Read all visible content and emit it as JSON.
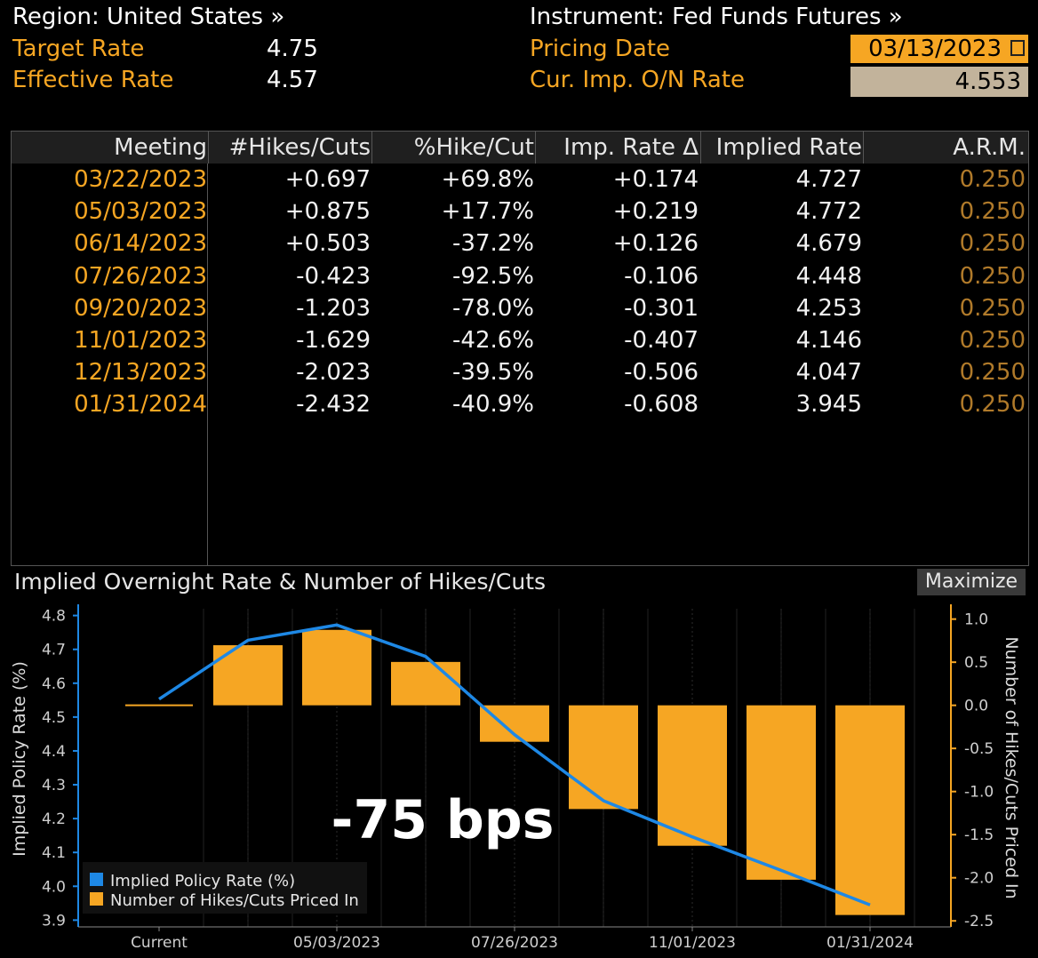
{
  "header": {
    "region": "Region: United States »",
    "instrument": "Instrument: Fed Funds Futures »",
    "target_rate_label": "Target Rate",
    "target_rate_value": "4.75",
    "effective_rate_label": "Effective Rate",
    "effective_rate_value": "4.57",
    "pricing_date_label": "Pricing Date",
    "pricing_date_value": "03/13/2023",
    "cur_imp_label": "Cur. Imp. O/N Rate",
    "cur_imp_value": "4.553"
  },
  "table": {
    "columns": [
      "Meeting",
      "#Hikes/Cuts",
      "%Hike/Cut",
      "Imp. Rate Δ",
      "Implied Rate",
      "A.R.M."
    ],
    "rows": [
      [
        "03/22/2023",
        "+0.697",
        "+69.8%",
        "+0.174",
        "4.727",
        "0.250"
      ],
      [
        "05/03/2023",
        "+0.875",
        "+17.7%",
        "+0.219",
        "4.772",
        "0.250"
      ],
      [
        "06/14/2023",
        "+0.503",
        "-37.2%",
        "+0.126",
        "4.679",
        "0.250"
      ],
      [
        "07/26/2023",
        "-0.423",
        "-92.5%",
        "-0.106",
        "4.448",
        "0.250"
      ],
      [
        "09/20/2023",
        "-1.203",
        "-78.0%",
        "-0.301",
        "4.253",
        "0.250"
      ],
      [
        "11/01/2023",
        "-1.629",
        "-42.6%",
        "-0.407",
        "4.146",
        "0.250"
      ],
      [
        "12/13/2023",
        "-2.023",
        "-39.5%",
        "-0.506",
        "4.047",
        "0.250"
      ],
      [
        "01/31/2024",
        "-2.432",
        "-40.9%",
        "-0.608",
        "3.945",
        "0.250"
      ]
    ]
  },
  "chart_title": "Implied Overnight Rate & Number of Hikes/Cuts",
  "maximize_label": "Maximize",
  "annotation": "-75 bps",
  "chart_data": {
    "type": "bar",
    "title": "Implied Overnight Rate & Number of Hikes/Cuts",
    "categories": [
      "Current",
      "03/22/2023",
      "05/03/2023",
      "06/14/2023",
      "07/26/2023",
      "09/20/2023",
      "11/01/2023",
      "12/13/2023",
      "01/31/2024"
    ],
    "x_tick_labels": [
      "Current",
      "05/03/2023",
      "07/26/2023",
      "11/01/2023",
      "01/31/2024"
    ],
    "series": [
      {
        "name": "Implied Policy Rate (%)",
        "type": "line",
        "axis": "left",
        "color": "#1e88e5",
        "values": [
          4.553,
          4.727,
          4.772,
          4.679,
          4.448,
          4.253,
          4.146,
          4.047,
          3.945
        ]
      },
      {
        "name": "Number of Hikes/Cuts Priced In",
        "type": "bar",
        "axis": "right",
        "color": "#f6a623",
        "values": [
          0.0,
          0.697,
          0.875,
          0.503,
          -0.423,
          -1.203,
          -1.629,
          -2.023,
          -2.432
        ]
      }
    ],
    "ylabel": "Implied Policy Rate (%)",
    "ylabel_right": "Number of Hikes/Cuts Priced In",
    "ylim": [
      3.88,
      4.82
    ],
    "y_ticks": [
      "4.8",
      "4.7",
      "4.6",
      "4.5",
      "4.4",
      "4.3",
      "4.2",
      "4.1",
      "4.0",
      "3.9"
    ],
    "ylim_right": [
      -2.57,
      1.12
    ],
    "y_ticks_right": [
      "1.0",
      "0.5",
      "0.0",
      "-0.5",
      "-1.0",
      "-1.5",
      "-2.0",
      "-2.5"
    ],
    "legend_position": "bottom-left",
    "annotation": "-75 bps"
  }
}
